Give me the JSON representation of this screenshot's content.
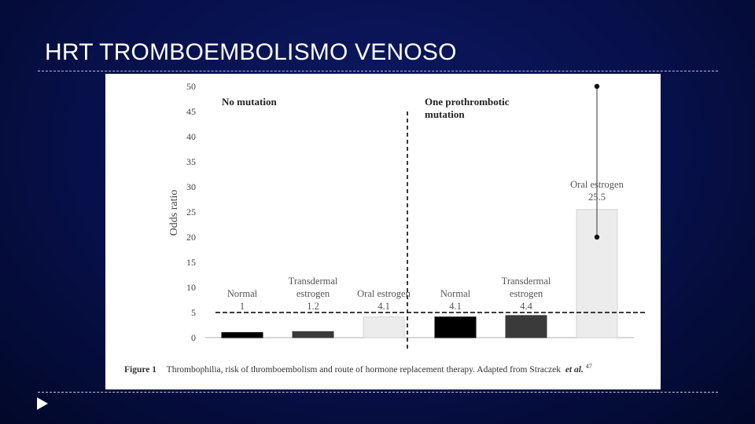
{
  "slide": {
    "title": "HRT TROMBOEMBOLISMO VENOSO"
  },
  "figure": {
    "caption_label": "Figure 1",
    "caption_text": "Thrombophilia, risk of thromboembolism and route of hormone replacement therapy. Adapted from Straczek",
    "caption_etal": "et al.",
    "caption_ref": "47"
  },
  "chart_data": {
    "type": "bar",
    "ylabel": "Odds ratio",
    "ylim": [
      0,
      50
    ],
    "yticks": [
      0,
      5,
      10,
      15,
      20,
      25,
      30,
      35,
      40,
      45,
      50
    ],
    "reference_line": 5,
    "groups": [
      {
        "label": "No mutation",
        "label_lines": [
          "No mutation"
        ]
      },
      {
        "label": "One prothrombotic mutation",
        "label_lines": [
          "One prothrombotic",
          "mutation"
        ]
      }
    ],
    "bars": [
      {
        "group": 0,
        "label_lines": [
          "Normal"
        ],
        "value": 1,
        "value_label": "1",
        "color": "#000000"
      },
      {
        "group": 0,
        "label_lines": [
          "Transdermal",
          "estrogen"
        ],
        "value": 1.2,
        "value_label": "1.2",
        "color": "#3a3a3a"
      },
      {
        "group": 0,
        "label_lines": [
          "Oral estrogen"
        ],
        "value": 4.1,
        "value_label": "4.1",
        "color": "#ececec"
      },
      {
        "group": 1,
        "label_lines": [
          "Normal"
        ],
        "value": 4.1,
        "value_label": "4.1",
        "color": "#000000"
      },
      {
        "group": 1,
        "label_lines": [
          "Transdermal",
          "estrogen"
        ],
        "value": 4.4,
        "value_label": "4.4",
        "color": "#3a3a3a"
      },
      {
        "group": 1,
        "label_lines": [
          "Oral estrogen"
        ],
        "value": 25.5,
        "value_label": "25.5",
        "color": "#ececec",
        "error_low": 20,
        "error_high": 50
      }
    ]
  }
}
